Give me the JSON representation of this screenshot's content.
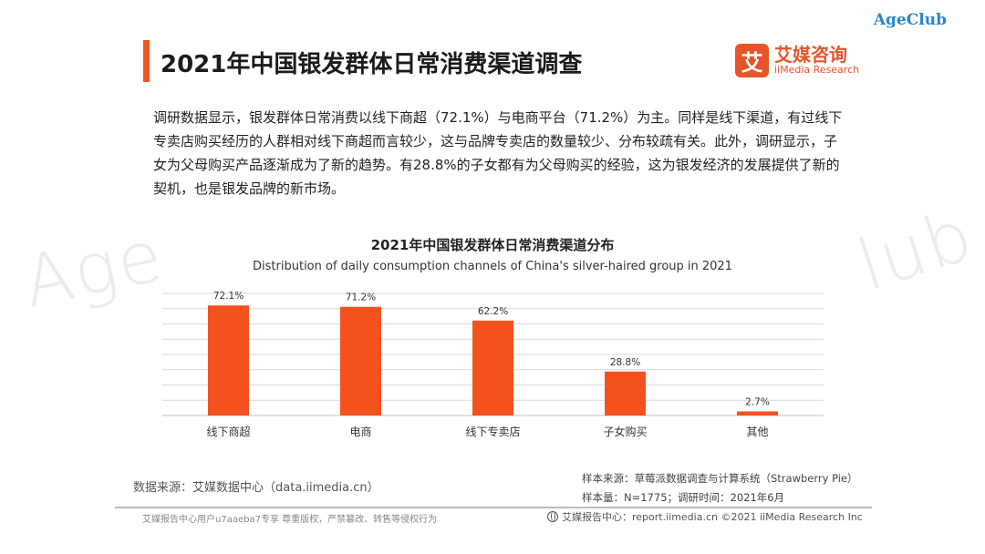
{
  "watermark": {
    "left": "Age",
    "right": "lub"
  },
  "brand": {
    "corner": "AgeClub"
  },
  "header": {
    "title": "2021年中国银发群体日常消费渠道调查",
    "logo_mark": "艾",
    "logo_cn": "艾媒咨询",
    "logo_en": "iiMedia Research"
  },
  "intro": {
    "text": "调研数据显示，银发群体日常消费以线下商超（72.1%）与电商平台（71.2%）为主。同样是线下渠道，有过线下专卖店购买经历的人群相对线下商超而言较少，这与品牌专卖店的数量较少、分布较疏有关。此外，调研显示，子女为父母购买产品逐渐成为了新的趋势。有28.8%的子女都有为父母购买的经验，这为银发经济的发展提供了新的契机，也是银发品牌的新市场。"
  },
  "chart_data": {
    "type": "bar",
    "title": "2021年中国银发群体日常消费渠道分布",
    "subtitle": "Distribution of daily consumption channels of China's silver-haired group in 2021",
    "categories": [
      "线下商超",
      "电商",
      "线下专卖店",
      "子女购买",
      "其他"
    ],
    "values": [
      72.1,
      71.2,
      62.2,
      28.8,
      2.7
    ],
    "value_labels": [
      "72.1%",
      "71.2%",
      "62.2%",
      "28.8%",
      "2.7%"
    ],
    "ylim": [
      0,
      80
    ],
    "grid": true,
    "bar_color": "#f4511e",
    "xlabel": "",
    "ylabel": ""
  },
  "sources": {
    "data_source": "数据来源：艾媒数据中心（data.iimedia.cn）",
    "sample_source": "样本来源：草莓派数据调查与计算系统（Strawberry Pie）",
    "sample_size": "样本量：N=1775；调研时间：2021年6月"
  },
  "footer": {
    "left": "艾媒报告中心用户u7aaeba7专享 尊重版权，严禁篡改、转售等侵权行为",
    "right": "艾媒报告中心：report.iimedia.cn  ©2021  iiMedia Research  Inc"
  }
}
